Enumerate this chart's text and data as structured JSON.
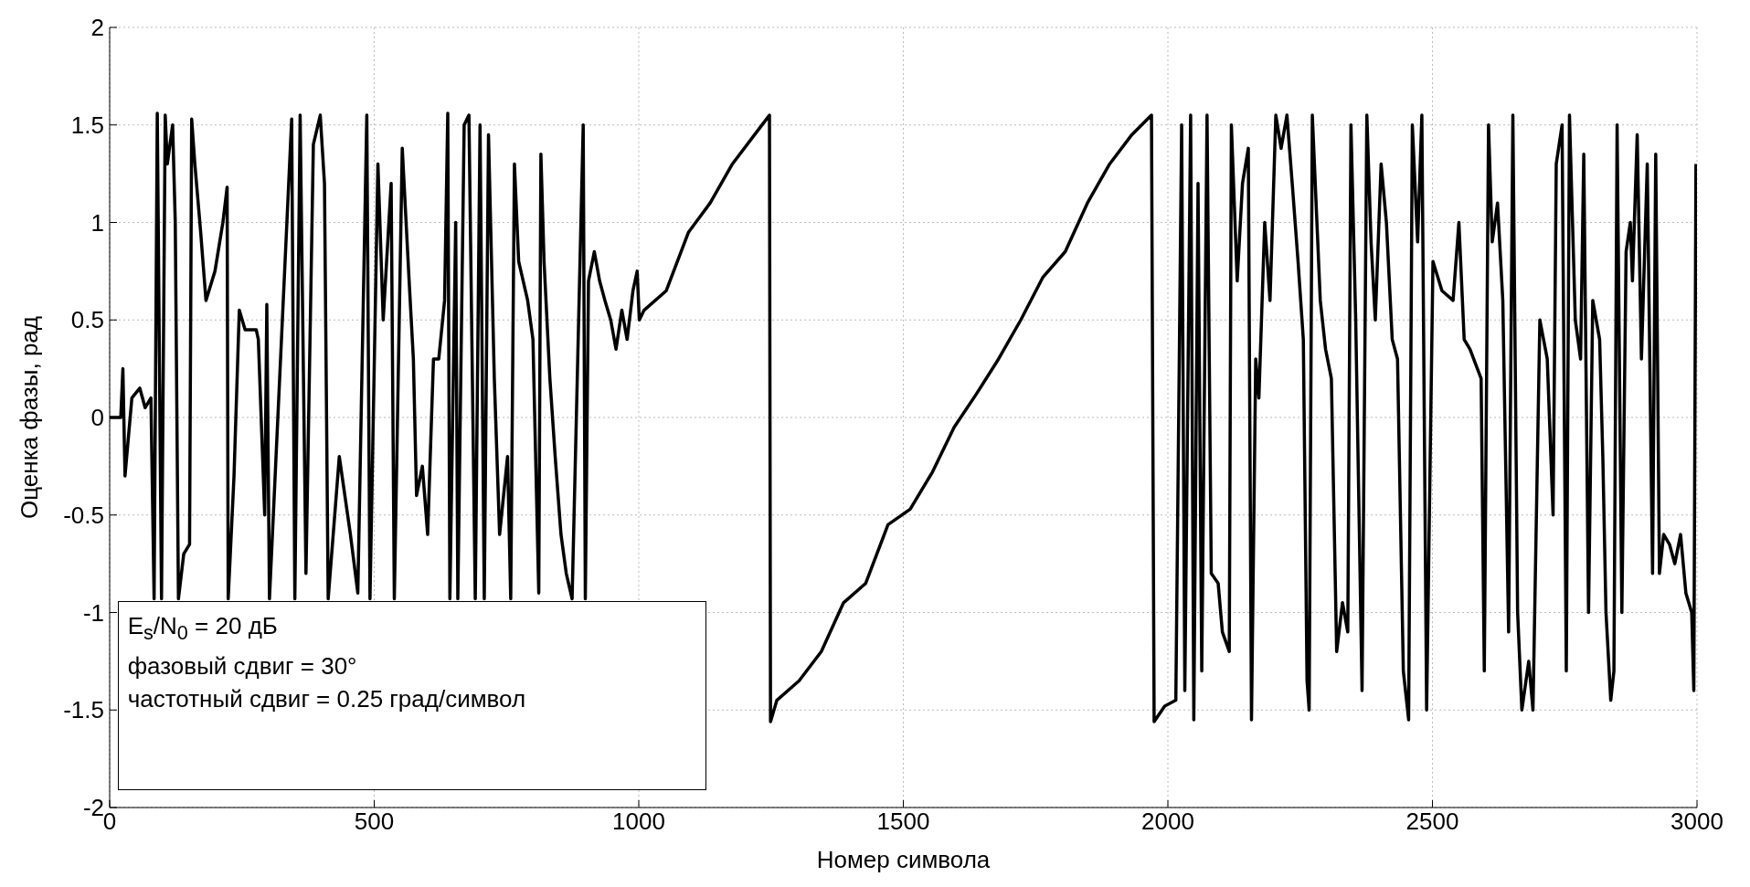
{
  "chart_data": {
    "type": "line",
    "xlabel": "Номер символа",
    "ylabel": "Оценка фазы, рад",
    "annotations": [
      "E$_{s}$/N$_{0}$ = 20 дБ",
      "фазовый сдвиг = 30°",
      "частотный сдвиг = 0.25 град/символ"
    ],
    "xlim": [
      0,
      3000
    ],
    "xticks": [
      0,
      500,
      1000,
      1500,
      2000,
      2500,
      3000
    ],
    "ylim": [
      -2,
      2
    ],
    "yticks": [
      -2,
      -1.5,
      -1,
      -0.5,
      0,
      0.5,
      1,
      1.5,
      2
    ],
    "grid": true,
    "legend": false,
    "marker": "none",
    "line_style": "solid",
    "series": [
      {
        "color": "#000000",
        "x": [
          0,
          21,
          25,
          29,
          42,
          57,
          67,
          78,
          84,
          90,
          98,
          105,
          109,
          119,
          124,
          130,
          140,
          151,
          155,
          161,
          172,
          182,
          199,
          214,
          222,
          224,
          235,
          245,
          256,
          277,
          281,
          293,
          297,
          302,
          344,
          350,
          360,
          371,
          385,
          398,
          406,
          413,
          434,
          455,
          469,
          486,
          492,
          507,
          517,
          532,
          538,
          553,
          566,
          574,
          580,
          591,
          601,
          612,
          622,
          633,
          639,
          643,
          654,
          658,
          670,
          679,
          691,
          700,
          708,
          716,
          727,
          737,
          752,
          758,
          765,
          773,
          790,
          800,
          811,
          815,
          821,
          832,
          842,
          853,
          863,
          874,
          895,
          899,
          905,
          916,
          926,
          936,
          947,
          957,
          968,
          978,
          989,
          997,
          1001,
          1010,
          1052,
          1094,
          1135,
          1177,
          1219,
          1247,
          1249,
          1261,
          1303,
          1345,
          1387,
          1429,
          1471,
          1513,
          1555,
          1596,
          1638,
          1680,
          1722,
          1764,
          1806,
          1848,
          1890,
          1932,
          1969,
          1974,
          1994,
          2015,
          2026,
          2032,
          2043,
          2049,
          2057,
          2064,
          2074,
          2082,
          2095,
          2103,
          2116,
          2120,
          2131,
          2141,
          2152,
          2158,
          2166,
          2172,
          2183,
          2193,
          2204,
          2214,
          2225,
          2235,
          2246,
          2256,
          2263,
          2267,
          2273,
          2288,
          2298,
          2309,
          2319,
          2330,
          2340,
          2346,
          2355,
          2367,
          2376,
          2384,
          2392,
          2403,
          2413,
          2424,
          2434,
          2445,
          2455,
          2462,
          2472,
          2480,
          2489,
          2501,
          2518,
          2539,
          2550,
          2560,
          2571,
          2592,
          2598,
          2606,
          2613,
          2623,
          2633,
          2644,
          2652,
          2661,
          2669,
          2682,
          2690,
          2703,
          2717,
          2728,
          2734,
          2745,
          2753,
          2759,
          2770,
          2780,
          2786,
          2795,
          2803,
          2816,
          2822,
          2828,
          2837,
          2843,
          2849,
          2858,
          2866,
          2874,
          2878,
          2887,
          2895,
          2906,
          2916,
          2922,
          2929,
          2937,
          2948,
          2958,
          2969,
          2979,
          2990,
          2994,
          2998
        ],
        "values": [
          0,
          0,
          0.25,
          -0.3,
          0.1,
          0.15,
          0.05,
          0.1,
          -0.93,
          1.56,
          -0.93,
          1.55,
          1.3,
          1.5,
          1.0,
          -0.93,
          -0.7,
          -0.65,
          1.53,
          1.3,
          0.95,
          0.6,
          0.75,
          1.0,
          1.18,
          -0.93,
          -0.3,
          0.55,
          0.45,
          0.45,
          0.4,
          -0.5,
          0.58,
          -0.93,
          1.53,
          -0.93,
          1.55,
          -0.8,
          1.4,
          1.55,
          1.2,
          -0.93,
          -0.2,
          -0.6,
          -0.9,
          1.55,
          -0.93,
          1.3,
          0.5,
          1.2,
          -0.93,
          1.38,
          0.7,
          0.3,
          -0.4,
          -0.25,
          -0.6,
          0.3,
          0.3,
          0.6,
          1.56,
          -0.93,
          1.0,
          -0.93,
          1.5,
          1.55,
          -0.93,
          1.5,
          -0.93,
          1.45,
          0.2,
          -0.6,
          -0.2,
          -0.93,
          1.3,
          0.8,
          0.6,
          0.4,
          -0.9,
          1.35,
          0.8,
          0.2,
          -0.2,
          -0.6,
          -0.8,
          -0.93,
          1.5,
          -0.93,
          0.7,
          0.85,
          0.7,
          0.6,
          0.5,
          0.35,
          0.55,
          0.4,
          0.65,
          0.75,
          0.5,
          0.55,
          0.65,
          0.95,
          1.1,
          1.3,
          1.45,
          1.55,
          -1.56,
          -1.45,
          -1.35,
          -1.2,
          -0.95,
          -0.85,
          -0.55,
          -0.47,
          -0.28,
          -0.05,
          0.12,
          0.3,
          0.5,
          0.72,
          0.85,
          1.1,
          1.3,
          1.45,
          1.55,
          -1.56,
          -1.48,
          -1.45,
          1.5,
          -1.4,
          1.55,
          -1.55,
          1.2,
          -1.3,
          1.55,
          -0.8,
          -0.85,
          -1.1,
          -1.2,
          1.5,
          0.7,
          1.2,
          1.38,
          -1.55,
          0.3,
          0.1,
          1.0,
          0.6,
          1.55,
          1.38,
          1.55,
          1.2,
          0.8,
          0.4,
          -1.35,
          -1.5,
          1.55,
          0.6,
          0.35,
          0.2,
          -1.2,
          -0.95,
          -1.1,
          1.5,
          0.5,
          -1.4,
          1.55,
          0.9,
          0.5,
          1.3,
          1.0,
          0.4,
          0.3,
          -1.3,
          -1.55,
          1.5,
          0.9,
          1.55,
          -1.5,
          0.8,
          0.65,
          0.6,
          1.0,
          0.4,
          0.35,
          0.2,
          -1.3,
          1.5,
          0.9,
          1.1,
          0.6,
          -1.1,
          1.55,
          -1.0,
          -1.5,
          -1.25,
          -1.5,
          0.5,
          0.3,
          -0.5,
          1.3,
          1.5,
          -1.3,
          1.55,
          0.5,
          0.3,
          1.35,
          -1.0,
          0.6,
          0.4,
          -0.2,
          -1.0,
          -1.45,
          -1.3,
          1.5,
          -1.0,
          0.85,
          1.0,
          0.7,
          1.45,
          0.3,
          1.3,
          -0.8,
          1.35,
          -0.8,
          -0.6,
          -0.65,
          -0.75,
          -0.6,
          -0.9,
          -1.0,
          -1.4,
          1.3
        ]
      }
    ]
  }
}
